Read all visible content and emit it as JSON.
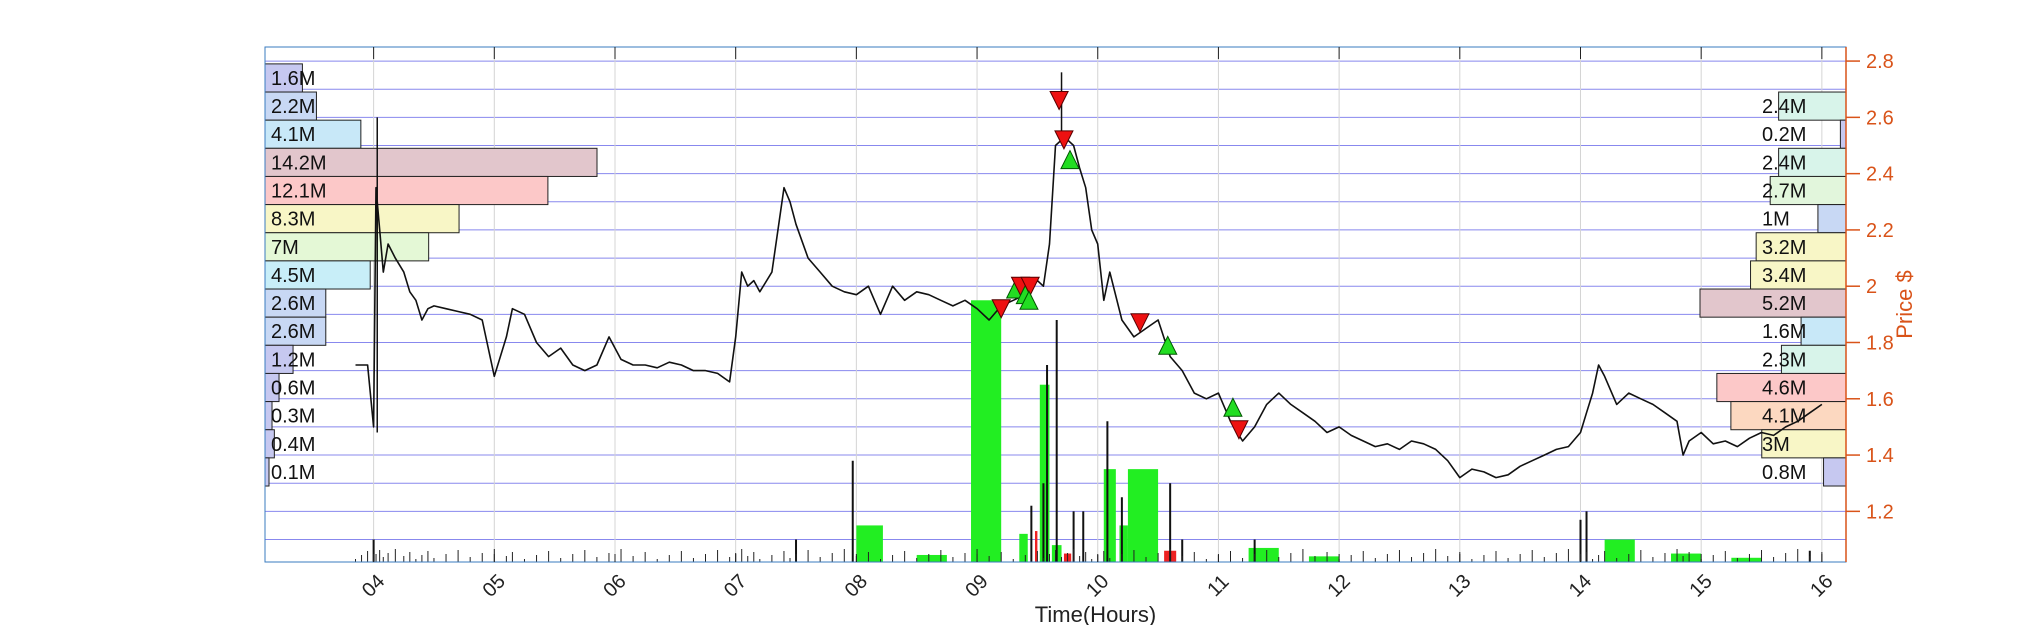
{
  "chart_data": {
    "type": "line",
    "xlabel": "Time(Hours)",
    "ylabel": "Price $",
    "xlim": [
      3.1,
      16.2
    ],
    "ylim": [
      1.02,
      2.85
    ],
    "x_ticks": [
      "04",
      "05",
      "06",
      "07",
      "08",
      "09",
      "10",
      "11",
      "12",
      "13",
      "14",
      "15",
      "16"
    ],
    "x_tick_values": [
      4,
      5,
      6,
      7,
      8,
      9,
      10,
      11,
      12,
      13,
      14,
      15,
      16
    ],
    "y_ticks": [
      "1.2",
      "1.4",
      "1.6",
      "1.8",
      "2",
      "2.2",
      "2.4",
      "2.6",
      "2.8"
    ],
    "y_tick_values": [
      1.2,
      1.4,
      1.6,
      1.8,
      2.0,
      2.2,
      2.4,
      2.6,
      2.8
    ],
    "price_series": {
      "x": [
        3.85,
        3.9,
        3.95,
        4.0,
        4.02,
        4.05,
        4.08,
        4.12,
        4.18,
        4.25,
        4.3,
        4.35,
        4.4,
        4.45,
        4.5,
        4.6,
        4.7,
        4.8,
        4.9,
        5.0,
        5.1,
        5.15,
        5.25,
        5.35,
        5.45,
        5.55,
        5.65,
        5.75,
        5.85,
        5.95,
        6.05,
        6.15,
        6.25,
        6.35,
        6.45,
        6.55,
        6.65,
        6.75,
        6.85,
        6.95,
        7.0,
        7.05,
        7.1,
        7.15,
        7.2,
        7.3,
        7.4,
        7.45,
        7.5,
        7.6,
        7.7,
        7.8,
        7.9,
        8.0,
        8.1,
        8.2,
        8.3,
        8.4,
        8.5,
        8.6,
        8.7,
        8.8,
        8.9,
        9.0,
        9.1,
        9.2,
        9.3,
        9.4,
        9.5,
        9.55,
        9.6,
        9.65,
        9.7,
        9.75,
        9.8,
        9.85,
        9.9,
        9.95,
        10.0,
        10.05,
        10.1,
        10.2,
        10.3,
        10.4,
        10.5,
        10.6,
        10.7,
        10.8,
        10.9,
        11.0,
        11.1,
        11.2,
        11.3,
        11.4,
        11.5,
        11.6,
        11.7,
        11.8,
        11.9,
        12.0,
        12.1,
        12.2,
        12.3,
        12.4,
        12.5,
        12.6,
        12.7,
        12.8,
        12.9,
        13.0,
        13.1,
        13.2,
        13.3,
        13.4,
        13.5,
        13.6,
        13.7,
        13.8,
        13.9,
        14.0,
        14.05,
        14.1,
        14.15,
        14.2,
        14.3,
        14.4,
        14.5,
        14.6,
        14.7,
        14.8,
        14.85,
        14.9,
        15.0,
        15.1,
        15.2,
        15.3,
        15.4,
        15.5,
        15.6,
        15.7,
        15.8,
        15.9,
        16.0
      ],
      "y": [
        1.72,
        1.72,
        1.72,
        1.5,
        2.35,
        2.2,
        2.05,
        2.15,
        2.1,
        2.05,
        1.98,
        1.95,
        1.88,
        1.92,
        1.93,
        1.92,
        1.91,
        1.9,
        1.88,
        1.68,
        1.82,
        1.92,
        1.9,
        1.8,
        1.75,
        1.78,
        1.72,
        1.7,
        1.72,
        1.82,
        1.74,
        1.72,
        1.72,
        1.71,
        1.73,
        1.72,
        1.7,
        1.7,
        1.69,
        1.66,
        1.82,
        2.05,
        2.0,
        2.02,
        1.98,
        2.05,
        2.35,
        2.3,
        2.22,
        2.1,
        2.05,
        2.0,
        1.98,
        1.97,
        2.0,
        1.9,
        2.0,
        1.95,
        1.98,
        1.97,
        1.95,
        1.93,
        1.95,
        1.92,
        1.88,
        1.93,
        1.95,
        1.97,
        2.02,
        2.0,
        2.15,
        2.5,
        2.52,
        2.52,
        2.5,
        2.42,
        2.35,
        2.2,
        2.15,
        1.95,
        2.05,
        1.88,
        1.82,
        1.85,
        1.88,
        1.75,
        1.7,
        1.62,
        1.6,
        1.62,
        1.52,
        1.45,
        1.5,
        1.58,
        1.62,
        1.58,
        1.55,
        1.52,
        1.48,
        1.5,
        1.47,
        1.45,
        1.43,
        1.44,
        1.42,
        1.45,
        1.44,
        1.42,
        1.38,
        1.32,
        1.35,
        1.34,
        1.32,
        1.33,
        1.36,
        1.38,
        1.4,
        1.42,
        1.43,
        1.48,
        1.55,
        1.62,
        1.72,
        1.68,
        1.58,
        1.62,
        1.6,
        1.58,
        1.55,
        1.52,
        1.4,
        1.45,
        1.48,
        1.44,
        1.45,
        1.43,
        1.46,
        1.48,
        1.47,
        1.5,
        1.52,
        1.55,
        1.58
      ]
    },
    "markers": [
      {
        "type": "sell",
        "x": 9.68,
        "y": 2.66
      },
      {
        "type": "sell",
        "x": 9.72,
        "y": 2.52
      },
      {
        "type": "buy",
        "x": 9.77,
        "y": 2.45
      },
      {
        "type": "sell",
        "x": 9.2,
        "y": 1.92
      },
      {
        "type": "buy",
        "x": 9.32,
        "y": 1.99
      },
      {
        "type": "sell",
        "x": 9.36,
        "y": 2.0
      },
      {
        "type": "buy",
        "x": 9.4,
        "y": 1.97
      },
      {
        "type": "sell",
        "x": 9.44,
        "y": 2.0
      },
      {
        "type": "buy",
        "x": 9.43,
        "y": 1.95
      },
      {
        "type": "sell",
        "x": 10.35,
        "y": 1.87
      },
      {
        "type": "buy",
        "x": 10.58,
        "y": 1.79
      },
      {
        "type": "buy",
        "x": 11.12,
        "y": 1.57
      },
      {
        "type": "sell",
        "x": 11.17,
        "y": 1.49
      }
    ],
    "volume_profile_left": [
      {
        "label": "1.6M",
        "price": 2.74,
        "value": 1.6,
        "color": "#c6c8f0"
      },
      {
        "label": "2.2M",
        "price": 2.64,
        "value": 2.2,
        "color": "#c8d8f4"
      },
      {
        "label": "4.1M",
        "price": 2.54,
        "value": 4.1,
        "color": "#c8e8f8"
      },
      {
        "label": "14.2M",
        "price": 2.44,
        "value": 14.2,
        "color": "#e2c6cc"
      },
      {
        "label": "12.1M",
        "price": 2.34,
        "value": 12.1,
        "color": "#fcc8c8"
      },
      {
        "label": "8.3M",
        "price": 2.24,
        "value": 8.3,
        "color": "#f8f6c6"
      },
      {
        "label": "7M",
        "price": 2.14,
        "value": 7.0,
        "color": "#e4f8d6"
      },
      {
        "label": "4.5M",
        "price": 2.04,
        "value": 4.5,
        "color": "#c8eef8"
      },
      {
        "label": "2.6M",
        "price": 1.94,
        "value": 2.6,
        "color": "#c8d8f4"
      },
      {
        "label": "2.6M",
        "price": 1.84,
        "value": 2.6,
        "color": "#c8d8f4"
      },
      {
        "label": "1.2M",
        "price": 1.74,
        "value": 1.2,
        "color": "#c6c8f0"
      },
      {
        "label": "0.6M",
        "price": 1.64,
        "value": 0.6,
        "color": "#c6c8f0"
      },
      {
        "label": "0.3M",
        "price": 1.54,
        "value": 0.3,
        "color": "#c6c8f0"
      },
      {
        "label": "0.4M",
        "price": 1.44,
        "value": 0.4,
        "color": "#c6c8f0"
      },
      {
        "label": "0.1M",
        "price": 1.34,
        "value": 0.1,
        "color": "#c6c8f0"
      }
    ],
    "volume_profile_right": [
      {
        "label": "2.4M",
        "price": 2.64,
        "value": 2.4,
        "color": "#d8f4ea"
      },
      {
        "label": "0.2M",
        "price": 2.54,
        "value": 0.2,
        "color": "#c6c8f0"
      },
      {
        "label": "2.4M",
        "price": 2.44,
        "value": 2.4,
        "color": "#d8f4ea"
      },
      {
        "label": "2.7M",
        "price": 2.34,
        "value": 2.7,
        "color": "#e2f6dc"
      },
      {
        "label": "1M",
        "price": 2.24,
        "value": 1.0,
        "color": "#c8d8f4"
      },
      {
        "label": "3.2M",
        "price": 2.14,
        "value": 3.2,
        "color": "#f8f6c6"
      },
      {
        "label": "3.4M",
        "price": 2.04,
        "value": 3.4,
        "color": "#f8f6c6"
      },
      {
        "label": "5.2M",
        "price": 1.94,
        "value": 5.2,
        "color": "#e2c6cc"
      },
      {
        "label": "1.6M",
        "price": 1.84,
        "value": 1.6,
        "color": "#c8e8f8"
      },
      {
        "label": "2.3M",
        "price": 1.74,
        "value": 2.3,
        "color": "#d8f4ea"
      },
      {
        "label": "4.6M",
        "price": 1.64,
        "value": 4.6,
        "color": "#fcc8c8"
      },
      {
        "label": "4.1M",
        "price": 1.54,
        "value": 4.1,
        "color": "#fcd8c0"
      },
      {
        "label": "3M",
        "price": 1.44,
        "value": 3.0,
        "color": "#f8f6c6"
      },
      {
        "label": "0.8M",
        "price": 1.34,
        "value": 0.8,
        "color": "#c6c8f0"
      }
    ],
    "volume_bars": [
      {
        "x0": 8.0,
        "x1": 8.22,
        "level": 1.15,
        "color": "#22ee22"
      },
      {
        "x0": 8.5,
        "x1": 8.75,
        "level": 1.045,
        "color": "#22ee22"
      },
      {
        "x0": 8.95,
        "x1": 9.2,
        "level": 1.95,
        "color": "#22ee22"
      },
      {
        "x0": 9.52,
        "x1": 9.6,
        "level": 1.65,
        "color": "#22ee22"
      },
      {
        "x0": 9.62,
        "x1": 9.7,
        "level": 1.08,
        "color": "#22ee22"
      },
      {
        "x0": 9.35,
        "x1": 9.42,
        "level": 1.12,
        "color": "#22ee22"
      },
      {
        "x0": 10.05,
        "x1": 10.15,
        "level": 1.35,
        "color": "#22ee22"
      },
      {
        "x0": 10.25,
        "x1": 10.5,
        "level": 1.35,
        "color": "#22ee22"
      },
      {
        "x0": 10.18,
        "x1": 10.25,
        "level": 1.15,
        "color": "#22ee22"
      },
      {
        "x0": 11.25,
        "x1": 11.5,
        "level": 1.07,
        "color": "#22ee22"
      },
      {
        "x0": 11.75,
        "x1": 12.0,
        "level": 1.04,
        "color": "#22ee22"
      },
      {
        "x0": 14.2,
        "x1": 14.45,
        "level": 1.1,
        "color": "#22ee22"
      },
      {
        "x0": 14.75,
        "x1": 15.0,
        "level": 1.05,
        "color": "#22ee22"
      },
      {
        "x0": 15.25,
        "x1": 15.5,
        "level": 1.035,
        "color": "#22ee22"
      },
      {
        "x0": 9.48,
        "x1": 9.5,
        "level": 1.13,
        "color": "#ee2222"
      },
      {
        "x0": 10.55,
        "x1": 10.65,
        "level": 1.06,
        "color": "#ee2222"
      },
      {
        "x0": 9.72,
        "x1": 9.78,
        "level": 1.05,
        "color": "#ee2222"
      }
    ],
    "volume_spikes": [
      {
        "x": 4.0,
        "level": 1.1
      },
      {
        "x": 7.5,
        "level": 1.1
      },
      {
        "x": 7.97,
        "level": 1.38
      },
      {
        "x": 9.45,
        "level": 1.22
      },
      {
        "x": 9.55,
        "level": 1.3
      },
      {
        "x": 9.58,
        "level": 1.72
      },
      {
        "x": 9.66,
        "level": 1.88
      },
      {
        "x": 9.8,
        "level": 1.2
      },
      {
        "x": 9.88,
        "level": 1.2
      },
      {
        "x": 10.08,
        "level": 1.52
      },
      {
        "x": 10.2,
        "level": 1.25
      },
      {
        "x": 10.6,
        "level": 1.3
      },
      {
        "x": 10.7,
        "level": 1.1
      },
      {
        "x": 11.3,
        "level": 1.1
      },
      {
        "x": 14.0,
        "level": 1.17
      },
      {
        "x": 14.05,
        "level": 1.2
      },
      {
        "x": 15.9,
        "level": 1.06
      }
    ]
  }
}
